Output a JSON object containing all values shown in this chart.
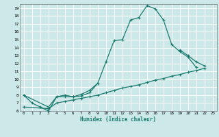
{
  "xlabel": "Humidex (Indice chaleur)",
  "bg_color": "#cce8e8",
  "grid_color": "#ffffff",
  "line_color": "#1a7a6e",
  "xlim": [
    -0.5,
    23.5
  ],
  "ylim": [
    6,
    19.5
  ],
  "xticks": [
    0,
    1,
    2,
    3,
    4,
    5,
    6,
    7,
    8,
    9,
    10,
    11,
    12,
    13,
    14,
    15,
    16,
    17,
    18,
    19,
    20,
    21,
    22,
    23
  ],
  "yticks": [
    6,
    7,
    8,
    9,
    10,
    11,
    12,
    13,
    14,
    15,
    16,
    17,
    18,
    19
  ],
  "line1_x": [
    0,
    1,
    2,
    3,
    4,
    5,
    6,
    7,
    8,
    9,
    10,
    11,
    12,
    13,
    14,
    15,
    16,
    17,
    18,
    19,
    20,
    21
  ],
  "line1_y": [
    8.0,
    7.0,
    6.5,
    6.0,
    7.8,
    7.8,
    7.8,
    8.1,
    8.6,
    9.5,
    12.2,
    14.9,
    15.0,
    17.5,
    17.8,
    19.3,
    18.9,
    17.5,
    14.4,
    13.5,
    12.8,
    11.5
  ],
  "line2_x": [
    0,
    3,
    4,
    5,
    6,
    7,
    8,
    9,
    19,
    20,
    21,
    22
  ],
  "line2_y": [
    8.0,
    6.5,
    7.8,
    8.0,
    7.8,
    7.9,
    8.3,
    9.5,
    13.7,
    13.0,
    12.2,
    11.7
  ],
  "line3_x": [
    0,
    3,
    4,
    5,
    6,
    7,
    8,
    9,
    10,
    11,
    12,
    13,
    14,
    15,
    16,
    17,
    18,
    19,
    20,
    21,
    22
  ],
  "line3_y": [
    6.5,
    6.3,
    7.0,
    7.2,
    7.4,
    7.6,
    7.8,
    8.0,
    8.3,
    8.6,
    8.9,
    9.1,
    9.3,
    9.6,
    9.9,
    10.1,
    10.4,
    10.6,
    10.9,
    11.1,
    11.4
  ]
}
